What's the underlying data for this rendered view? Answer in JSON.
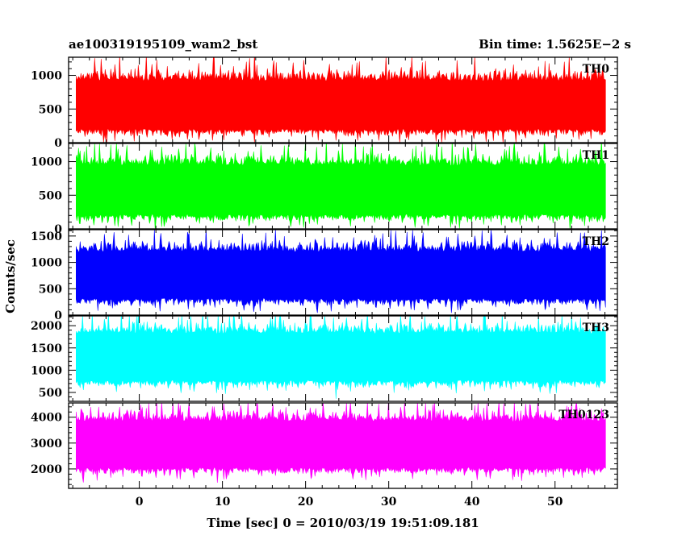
{
  "chart_data": {
    "type": "line",
    "title_left": "ae100319195109_wam2_bst",
    "title_right": "Bin time: 1.5625E−2 s",
    "xlabel": "Time [sec] 0 = 2010/03/19 19:51:09.181",
    "ylabel": "Counts/sec",
    "xlim": [
      -8.5,
      57.5
    ],
    "x_ticks": [
      0,
      10,
      20,
      30,
      40,
      50
    ],
    "x_range_data": [
      -7.6,
      56.1
    ],
    "grid": false,
    "panels": [
      {
        "name": "TH0",
        "color": "#ff0000",
        "ylim": [
          0,
          1270
        ],
        "y_ticks": [
          0,
          500,
          1000
        ],
        "mean": 560,
        "lower_envelope": 90,
        "upper_envelope": 1270
      },
      {
        "name": "TH1",
        "color": "#00ff00",
        "ylim": [
          0,
          1270
        ],
        "y_ticks": [
          0,
          500,
          1000
        ],
        "mean": 580,
        "lower_envelope": 70,
        "upper_envelope": 1270
      },
      {
        "name": "TH2",
        "color": "#0000ff",
        "ylim": [
          0,
          1620
        ],
        "y_ticks": [
          0,
          500,
          1000,
          1500
        ],
        "mean": 760,
        "lower_envelope": 160,
        "upper_envelope": 1620
      },
      {
        "name": "TH3",
        "color": "#00ffff",
        "ylim": [
          300,
          2220
        ],
        "y_ticks": [
          500,
          1000,
          1500,
          2000
        ],
        "mean": 1300,
        "lower_envelope": 480,
        "upper_envelope": 2220
      },
      {
        "name": "TH0123",
        "color": "#ff00ff",
        "ylim": [
          1250,
          4550
        ],
        "y_ticks": [
          2000,
          3000,
          4000
        ],
        "mean": 2950,
        "lower_envelope": 1600,
        "upper_envelope": 4550
      }
    ]
  }
}
